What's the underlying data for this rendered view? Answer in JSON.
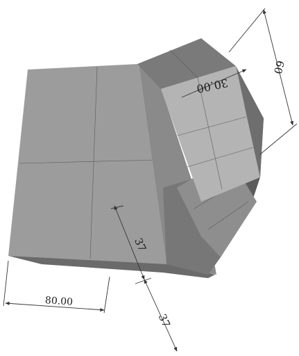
{
  "diagram": {
    "dimensions": {
      "width_label": "80.00",
      "height_label": "60",
      "angle_label": "30.00",
      "depth_label_1": "37",
      "depth_label_2": "37"
    }
  },
  "colors": {
    "background": "#ffffff",
    "front_face": "#9c9c9c",
    "top_face": "#7a7a7a",
    "light_panel": "#b4b4b4",
    "shadow_face": "#6e6e6e",
    "dark_face": "#5c5c5c",
    "dimension_line": "#333333"
  }
}
